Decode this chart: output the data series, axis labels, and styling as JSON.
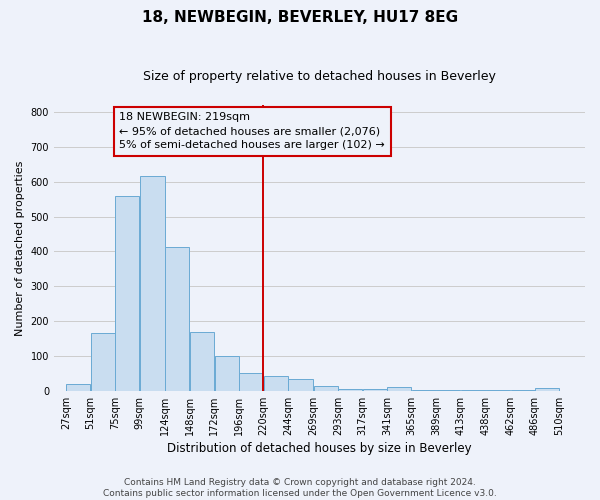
{
  "title": "18, NEWBEGIN, BEVERLEY, HU17 8EG",
  "subtitle": "Size of property relative to detached houses in Beverley",
  "xlabel": "Distribution of detached houses by size in Beverley",
  "ylabel": "Number of detached properties",
  "bar_left_edges": [
    27,
    51,
    75,
    99,
    124,
    148,
    172,
    196,
    220,
    244,
    269,
    293,
    317,
    341,
    365,
    389,
    413,
    438,
    462,
    486
  ],
  "bar_widths": [
    24,
    24,
    24,
    25,
    24,
    24,
    24,
    24,
    24,
    25,
    24,
    24,
    24,
    24,
    24,
    24,
    25,
    24,
    24,
    24
  ],
  "bar_heights": [
    20,
    165,
    560,
    615,
    413,
    170,
    100,
    50,
    42,
    35,
    13,
    5,
    5,
    10,
    3,
    2,
    2,
    2,
    2,
    8
  ],
  "bar_color": "#c9ddf0",
  "bar_edge_color": "#6aaad4",
  "reference_line_x": 219.5,
  "reference_line_color": "#cc0000",
  "annotation_text_line1": "18 NEWBEGIN: 219sqm",
  "annotation_text_line2": "← 95% of detached houses are smaller (2,076)",
  "annotation_text_line3": "5% of semi-detached houses are larger (102) →",
  "ylim": [
    0,
    820
  ],
  "yticks": [
    0,
    100,
    200,
    300,
    400,
    500,
    600,
    700,
    800
  ],
  "xtick_labels": [
    "27sqm",
    "51sqm",
    "75sqm",
    "99sqm",
    "124sqm",
    "148sqm",
    "172sqm",
    "196sqm",
    "220sqm",
    "244sqm",
    "269sqm",
    "293sqm",
    "317sqm",
    "341sqm",
    "365sqm",
    "389sqm",
    "413sqm",
    "438sqm",
    "462sqm",
    "486sqm",
    "510sqm"
  ],
  "xtick_positions": [
    27,
    51,
    75,
    99,
    124,
    148,
    172,
    196,
    220,
    244,
    269,
    293,
    317,
    341,
    365,
    389,
    413,
    438,
    462,
    486,
    510
  ],
  "grid_color": "#cccccc",
  "background_color": "#eef2fa",
  "footer_text": "Contains HM Land Registry data © Crown copyright and database right 2024.\nContains public sector information licensed under the Open Government Licence v3.0.",
  "title_fontsize": 11,
  "subtitle_fontsize": 9,
  "xlabel_fontsize": 8.5,
  "ylabel_fontsize": 8,
  "tick_fontsize": 7,
  "annotation_fontsize": 8,
  "footer_fontsize": 6.5,
  "xlim_left": 15,
  "xlim_right": 535
}
